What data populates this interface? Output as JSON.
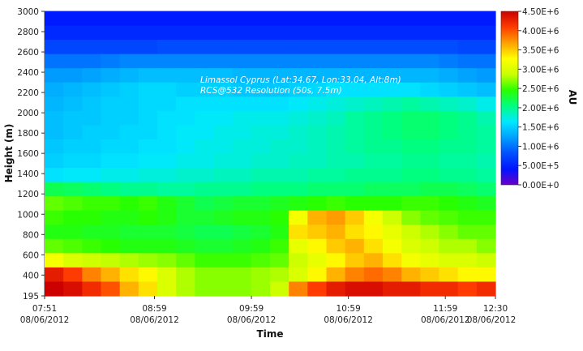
{
  "chart_data": {
    "type": "heatmap",
    "annotation_line1": "Limassol Cyprus (Lat:34.67, Lon:33.04, Alt:8m)",
    "annotation_line2": "RCS@532 Resolution (50s, 7.5m)",
    "xlabel": "Time",
    "ylabel": "Height (m)",
    "colorbar_label": "AU",
    "ylim": [
      195,
      3000
    ],
    "y_ticks": [
      "3000",
      "2800",
      "2600",
      "2400",
      "2200",
      "2000",
      "1800",
      "1600",
      "1400",
      "1200",
      "1000",
      "800",
      "600",
      "400",
      "195"
    ],
    "x_ticks": [
      {
        "time": "07:51",
        "date": "08/06/2012"
      },
      {
        "time": "08:59",
        "date": "08/06/2012"
      },
      {
        "time": "09:59",
        "date": "08/06/2012"
      },
      {
        "time": "10:59",
        "date": "08/06/2012"
      },
      {
        "time": "11:59",
        "date": "08/06/2012"
      },
      {
        "time": "12:30",
        "date": "08/06/2012"
      }
    ],
    "colorbar_ticks": [
      "4.50E+6",
      "4.00E+6",
      "3.50E+6",
      "3.00E+6",
      "2.50E+6",
      "2.00E+6",
      "1.50E+6",
      "1.00E+6",
      "5.00E+5",
      "0.00E+0"
    ],
    "colorscale": [
      "#6a00c8",
      "#0014ff",
      "#0050ff",
      "#00a0ff",
      "#00e8ff",
      "#00ff80",
      "#28ff00",
      "#c8ff00",
      "#ffff00",
      "#ffa000",
      "#ff3c00",
      "#cc0000"
    ],
    "values_1e6": [
      [
        0.45,
        0.45,
        0.45,
        0.45,
        0.45,
        0.45,
        0.45,
        0.45,
        0.45,
        0.45,
        0.45,
        0.45,
        0.45,
        0.45,
        0.45,
        0.45,
        0.45,
        0.45,
        0.45,
        0.45,
        0.45,
        0.45,
        0.45,
        0.45
      ],
      [
        0.55,
        0.55,
        0.55,
        0.55,
        0.55,
        0.55,
        0.55,
        0.55,
        0.55,
        0.55,
        0.55,
        0.55,
        0.55,
        0.55,
        0.55,
        0.55,
        0.55,
        0.55,
        0.55,
        0.55,
        0.55,
        0.55,
        0.55,
        0.55
      ],
      [
        0.75,
        0.75,
        0.75,
        0.75,
        0.75,
        0.75,
        0.8,
        0.8,
        0.8,
        0.8,
        0.8,
        0.8,
        0.8,
        0.8,
        0.8,
        0.8,
        0.8,
        0.8,
        0.8,
        0.8,
        0.8,
        0.8,
        0.75,
        0.75
      ],
      [
        1.0,
        1.0,
        1.0,
        1.05,
        1.1,
        1.1,
        1.1,
        1.1,
        1.1,
        1.1,
        1.1,
        1.1,
        1.1,
        1.1,
        1.1,
        1.1,
        1.1,
        1.1,
        1.1,
        1.1,
        1.1,
        1.05,
        1.0,
        1.0
      ],
      [
        1.2,
        1.2,
        1.25,
        1.3,
        1.35,
        1.4,
        1.4,
        1.4,
        1.4,
        1.4,
        1.35,
        1.35,
        1.35,
        1.35,
        1.35,
        1.35,
        1.35,
        1.35,
        1.35,
        1.35,
        1.35,
        1.3,
        1.25,
        1.2
      ],
      [
        1.3,
        1.35,
        1.4,
        1.45,
        1.5,
        1.55,
        1.55,
        1.5,
        1.5,
        1.5,
        1.45,
        1.45,
        1.45,
        1.5,
        1.55,
        1.6,
        1.6,
        1.6,
        1.6,
        1.6,
        1.55,
        1.5,
        1.45,
        1.4
      ],
      [
        1.35,
        1.4,
        1.45,
        1.5,
        1.5,
        1.55,
        1.55,
        1.6,
        1.6,
        1.6,
        1.6,
        1.6,
        1.6,
        1.65,
        1.7,
        1.75,
        1.8,
        1.85,
        1.9,
        1.95,
        1.9,
        1.85,
        1.8,
        1.7
      ],
      [
        1.4,
        1.45,
        1.45,
        1.5,
        1.5,
        1.55,
        1.6,
        1.6,
        1.65,
        1.65,
        1.7,
        1.7,
        1.7,
        1.75,
        1.8,
        1.85,
        1.95,
        2.0,
        2.05,
        2.1,
        2.1,
        2.05,
        2.0,
        1.9
      ],
      [
        1.4,
        1.45,
        1.5,
        1.5,
        1.55,
        1.55,
        1.6,
        1.65,
        1.65,
        1.7,
        1.7,
        1.75,
        1.75,
        1.8,
        1.85,
        1.9,
        1.95,
        2.0,
        2.05,
        2.1,
        2.1,
        2.05,
        2.0,
        1.95
      ],
      [
        1.45,
        1.5,
        1.5,
        1.55,
        1.55,
        1.6,
        1.6,
        1.65,
        1.7,
        1.7,
        1.75,
        1.75,
        1.8,
        1.8,
        1.85,
        1.9,
        1.95,
        2.0,
        2.0,
        2.05,
        2.05,
        2.0,
        2.0,
        1.95
      ],
      [
        1.5,
        1.55,
        1.55,
        1.6,
        1.6,
        1.65,
        1.65,
        1.7,
        1.7,
        1.75,
        1.75,
        1.8,
        1.8,
        1.85,
        1.85,
        1.9,
        1.9,
        1.95,
        1.95,
        2.0,
        2.0,
        1.95,
        1.95,
        1.9
      ],
      [
        1.6,
        1.65,
        1.65,
        1.7,
        1.7,
        1.75,
        1.75,
        1.8,
        1.8,
        1.85,
        1.85,
        1.9,
        1.9,
        1.9,
        1.95,
        1.95,
        2.0,
        2.0,
        2.0,
        2.05,
        2.05,
        2.0,
        2.0,
        1.95
      ],
      [
        2.2,
        2.15,
        2.1,
        2.05,
        2.0,
        2.0,
        1.95,
        1.95,
        2.0,
        2.0,
        2.0,
        2.05,
        2.05,
        2.05,
        2.1,
        2.1,
        2.1,
        2.15,
        2.15,
        2.15,
        2.2,
        2.2,
        2.15,
        2.1
      ],
      [
        2.6,
        2.55,
        2.5,
        2.5,
        2.45,
        2.5,
        2.4,
        2.3,
        2.2,
        2.25,
        2.3,
        2.3,
        2.35,
        2.4,
        2.45,
        2.5,
        2.45,
        2.45,
        2.45,
        2.5,
        2.5,
        2.45,
        2.4,
        2.35
      ],
      [
        2.5,
        2.45,
        2.45,
        2.4,
        2.4,
        2.45,
        2.4,
        2.3,
        2.3,
        2.35,
        2.4,
        2.4,
        2.45,
        3.2,
        3.6,
        3.7,
        3.5,
        3.2,
        2.9,
        2.7,
        2.6,
        2.55,
        2.5,
        2.5
      ],
      [
        2.4,
        2.4,
        2.35,
        2.35,
        2.3,
        2.3,
        2.3,
        2.25,
        2.2,
        2.2,
        2.25,
        2.3,
        2.4,
        3.4,
        3.5,
        3.6,
        3.4,
        3.3,
        3.1,
        2.9,
        2.8,
        2.7,
        2.6,
        2.6
      ],
      [
        2.6,
        2.55,
        2.5,
        2.45,
        2.4,
        2.4,
        2.4,
        2.35,
        2.3,
        2.3,
        2.35,
        2.4,
        2.5,
        3.1,
        3.3,
        3.5,
        3.6,
        3.4,
        3.2,
        3.0,
        2.9,
        2.8,
        2.8,
        2.7
      ],
      [
        3.2,
        3.0,
        2.9,
        2.85,
        2.8,
        2.75,
        2.7,
        2.6,
        2.5,
        2.5,
        2.5,
        2.55,
        2.6,
        2.9,
        3.1,
        3.3,
        3.5,
        3.6,
        3.4,
        3.2,
        3.1,
        3.0,
        3.0,
        2.9
      ],
      [
        4.3,
        4.1,
        3.8,
        3.6,
        3.4,
        3.3,
        3.0,
        2.8,
        2.7,
        2.7,
        2.7,
        2.75,
        2.8,
        3.0,
        3.3,
        3.6,
        3.8,
        3.9,
        3.8,
        3.6,
        3.5,
        3.4,
        3.3,
        3.3
      ],
      [
        4.5,
        4.4,
        4.2,
        4.0,
        3.6,
        3.4,
        3.0,
        2.8,
        2.7,
        2.7,
        2.7,
        2.75,
        2.9,
        3.8,
        4.1,
        4.3,
        4.4,
        4.4,
        4.3,
        4.3,
        4.2,
        4.2,
        4.1,
        4.2
      ]
    ]
  }
}
